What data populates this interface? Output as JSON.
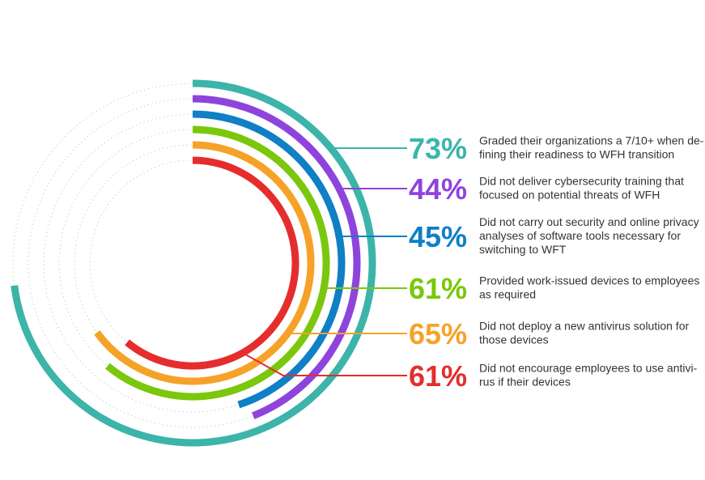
{
  "chart_data": {
    "type": "radial-bar",
    "full_scale": 100,
    "series": [
      {
        "value": 73,
        "label": "73%",
        "description": [
          "Graded their organizations a 7/10+ when de-",
          "fining their readiness to WFH transition"
        ],
        "color": "#3cb4aa"
      },
      {
        "value": 44,
        "label": "44%",
        "description": [
          "Did not deliver cybersecurity training that",
          "focused on potential threats of WFH"
        ],
        "color": "#8e44dc"
      },
      {
        "value": 45,
        "label": "45%",
        "description": [
          "Did not carry out security and online privacy",
          "analyses of software tools necessary for",
          "switching to WFT"
        ],
        "color": "#0f7fc6"
      },
      {
        "value": 61,
        "label": "61%",
        "description": [
          "Provided work-issued devices to employees",
          "as required"
        ],
        "color": "#7ac70c"
      },
      {
        "value": 65,
        "label": "65%",
        "description": [
          "Did not deploy a new antivirus solution for",
          "those devices"
        ],
        "color": "#f6a229"
      },
      {
        "value": 61,
        "label": "61%",
        "description": [
          "Did not encourage employees to use antivi-",
          "rus if their devices"
        ],
        "color": "#e52d2d"
      }
    ]
  }
}
